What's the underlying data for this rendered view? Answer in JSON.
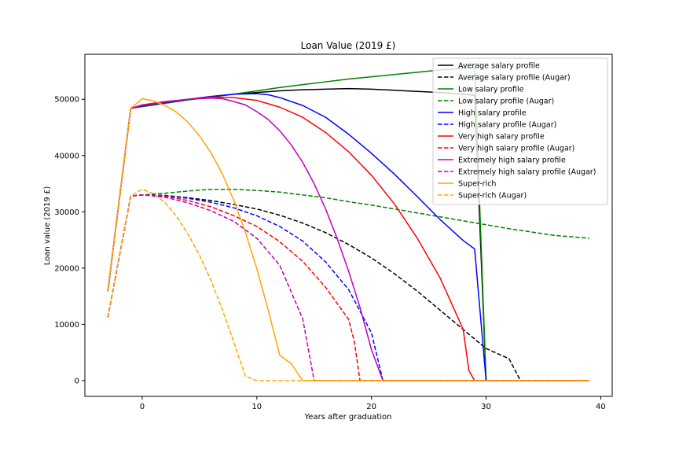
{
  "chart_data": {
    "type": "line",
    "title": "Loan Value (2019 £)",
    "xlabel": "Years after graduation",
    "ylabel": "Loan value (2019 £)",
    "xlim": [
      -5,
      41
    ],
    "ylim": [
      -2800,
      58000
    ],
    "xticks": [
      0,
      10,
      20,
      30,
      40
    ],
    "yticks": [
      0,
      10000,
      20000,
      30000,
      40000,
      50000
    ],
    "grid": false,
    "legend_position": "top-right",
    "series": [
      {
        "name": "Average salary profile",
        "color": "#000000",
        "dashed": false,
        "points": [
          [
            -3,
            15800
          ],
          [
            -1,
            48400
          ],
          [
            0,
            48700
          ],
          [
            2,
            49300
          ],
          [
            4,
            49900
          ],
          [
            6,
            50400
          ],
          [
            8,
            50900
          ],
          [
            10,
            51200
          ],
          [
            12,
            51500
          ],
          [
            14,
            51700
          ],
          [
            16,
            51800
          ],
          [
            18,
            51900
          ],
          [
            20,
            51800
          ],
          [
            22,
            51600
          ],
          [
            24,
            51400
          ],
          [
            26,
            51200
          ],
          [
            28,
            50900
          ],
          [
            29,
            50700
          ],
          [
            30,
            0
          ]
        ]
      },
      {
        "name": "Average salary profile (Augar)",
        "color": "#000000",
        "dashed": true,
        "points": [
          [
            -3,
            11200
          ],
          [
            -1,
            32800
          ],
          [
            0,
            33000
          ],
          [
            2,
            32900
          ],
          [
            4,
            32500
          ],
          [
            6,
            32000
          ],
          [
            8,
            31300
          ],
          [
            10,
            30500
          ],
          [
            12,
            29400
          ],
          [
            14,
            28000
          ],
          [
            16,
            26300
          ],
          [
            18,
            24200
          ],
          [
            20,
            21800
          ],
          [
            22,
            19000
          ],
          [
            24,
            15900
          ],
          [
            26,
            12500
          ],
          [
            28,
            9100
          ],
          [
            30,
            5700
          ],
          [
            32,
            3900
          ],
          [
            33,
            0
          ],
          [
            39,
            0
          ]
        ]
      },
      {
        "name": "Low salary profile",
        "color": "#008000",
        "dashed": false,
        "points": [
          [
            -3,
            15800
          ],
          [
            -1,
            48400
          ],
          [
            0,
            48700
          ],
          [
            2,
            49300
          ],
          [
            4,
            49900
          ],
          [
            6,
            50400
          ],
          [
            8,
            50900
          ],
          [
            10,
            51500
          ],
          [
            12,
            52100
          ],
          [
            14,
            52600
          ],
          [
            16,
            53100
          ],
          [
            18,
            53600
          ],
          [
            20,
            54000
          ],
          [
            22,
            54400
          ],
          [
            24,
            54800
          ],
          [
            26,
            55200
          ],
          [
            28,
            55500
          ],
          [
            29,
            55700
          ],
          [
            30,
            0
          ]
        ]
      },
      {
        "name": "Low salary profile (Augar)",
        "color": "#008000",
        "dashed": true,
        "points": [
          [
            -3,
            11200
          ],
          [
            -1,
            32800
          ],
          [
            0,
            33000
          ],
          [
            2,
            33300
          ],
          [
            4,
            33700
          ],
          [
            6,
            34000
          ],
          [
            8,
            34000
          ],
          [
            10,
            33800
          ],
          [
            12,
            33500
          ],
          [
            14,
            33000
          ],
          [
            16,
            32500
          ],
          [
            18,
            31800
          ],
          [
            20,
            31200
          ],
          [
            22,
            30500
          ],
          [
            24,
            29800
          ],
          [
            26,
            29100
          ],
          [
            28,
            28400
          ],
          [
            30,
            27700
          ],
          [
            32,
            27000
          ],
          [
            34,
            26400
          ],
          [
            36,
            25800
          ],
          [
            39,
            25300
          ]
        ]
      },
      {
        "name": "High salary profile",
        "color": "#0000ff",
        "dashed": false,
        "points": [
          [
            -3,
            15800
          ],
          [
            -1,
            48400
          ],
          [
            0,
            48800
          ],
          [
            2,
            49400
          ],
          [
            4,
            50000
          ],
          [
            6,
            50500
          ],
          [
            8,
            50900
          ],
          [
            10,
            51000
          ],
          [
            11,
            50800
          ],
          [
            12,
            50300
          ],
          [
            14,
            48900
          ],
          [
            16,
            46800
          ],
          [
            18,
            43800
          ],
          [
            20,
            40400
          ],
          [
            22,
            36700
          ],
          [
            24,
            32700
          ],
          [
            26,
            28600
          ],
          [
            28,
            24900
          ],
          [
            29,
            23400
          ],
          [
            30,
            0
          ]
        ]
      },
      {
        "name": "High salary profile (Augar)",
        "color": "#0000ff",
        "dashed": true,
        "points": [
          [
            -3,
            11200
          ],
          [
            -1,
            32800
          ],
          [
            0,
            33000
          ],
          [
            2,
            32900
          ],
          [
            4,
            32400
          ],
          [
            6,
            31700
          ],
          [
            8,
            30700
          ],
          [
            10,
            29300
          ],
          [
            12,
            27400
          ],
          [
            14,
            24800
          ],
          [
            16,
            21100
          ],
          [
            18,
            16200
          ],
          [
            20,
            8500
          ],
          [
            21,
            0
          ],
          [
            39,
            0
          ]
        ]
      },
      {
        "name": "Very high salary profile",
        "color": "#ff0000",
        "dashed": false,
        "points": [
          [
            -3,
            15800
          ],
          [
            -1,
            48400
          ],
          [
            0,
            48900
          ],
          [
            2,
            49500
          ],
          [
            4,
            50000
          ],
          [
            6,
            50400
          ],
          [
            8,
            50300
          ],
          [
            10,
            49800
          ],
          [
            12,
            48600
          ],
          [
            14,
            46800
          ],
          [
            16,
            44100
          ],
          [
            18,
            40700
          ],
          [
            20,
            36500
          ],
          [
            22,
            31400
          ],
          [
            24,
            25300
          ],
          [
            26,
            18200
          ],
          [
            28,
            9100
          ],
          [
            28.5,
            1800
          ],
          [
            29,
            0
          ],
          [
            39,
            0
          ]
        ]
      },
      {
        "name": "Very high salary profile (Augar)",
        "color": "#ff0000",
        "dashed": true,
        "points": [
          [
            -3,
            11200
          ],
          [
            -1,
            32800
          ],
          [
            0,
            33000
          ],
          [
            2,
            32800
          ],
          [
            4,
            32000
          ],
          [
            6,
            30900
          ],
          [
            8,
            29300
          ],
          [
            10,
            27400
          ],
          [
            12,
            24700
          ],
          [
            14,
            21200
          ],
          [
            16,
            16600
          ],
          [
            18,
            10900
          ],
          [
            18.5,
            7000
          ],
          [
            19,
            0
          ],
          [
            39,
            0
          ]
        ]
      },
      {
        "name": "Extremely high salary profile",
        "color": "#bf00bf",
        "dashed": false,
        "points": [
          [
            -3,
            15800
          ],
          [
            -1,
            48400
          ],
          [
            0,
            49000
          ],
          [
            2,
            49600
          ],
          [
            4,
            50000
          ],
          [
            6,
            50200
          ],
          [
            7,
            50100
          ],
          [
            8,
            49600
          ],
          [
            9,
            49000
          ],
          [
            10,
            47800
          ],
          [
            11,
            46400
          ],
          [
            12,
            44400
          ],
          [
            13,
            41900
          ],
          [
            14,
            38800
          ],
          [
            15,
            35000
          ],
          [
            16,
            30500
          ],
          [
            17,
            25300
          ],
          [
            18,
            19500
          ],
          [
            19,
            13000
          ],
          [
            20,
            5500
          ],
          [
            21,
            0
          ],
          [
            39,
            0
          ]
        ]
      },
      {
        "name": "Extremely high salary profile (Augar)",
        "color": "#bf00bf",
        "dashed": true,
        "points": [
          [
            -3,
            11200
          ],
          [
            -1,
            32800
          ],
          [
            0,
            33000
          ],
          [
            2,
            32600
          ],
          [
            4,
            31600
          ],
          [
            6,
            30200
          ],
          [
            8,
            28300
          ],
          [
            10,
            25300
          ],
          [
            12,
            20500
          ],
          [
            14,
            11000
          ],
          [
            15,
            0
          ],
          [
            39,
            0
          ]
        ]
      },
      {
        "name": "Super-rich",
        "color": "#ffa500",
        "dashed": false,
        "points": [
          [
            -3,
            15800
          ],
          [
            -1,
            48400
          ],
          [
            0,
            50100
          ],
          [
            1,
            49700
          ],
          [
            2,
            48900
          ],
          [
            3,
            47700
          ],
          [
            4,
            45900
          ],
          [
            5,
            43500
          ],
          [
            6,
            40500
          ],
          [
            7,
            36700
          ],
          [
            8,
            32000
          ],
          [
            9,
            26400
          ],
          [
            10,
            19900
          ],
          [
            11,
            12500
          ],
          [
            12,
            4500
          ],
          [
            13,
            3000
          ],
          [
            14,
            0
          ],
          [
            39,
            0
          ]
        ]
      },
      {
        "name": "Super-rich (Augar)",
        "color": "#ffa500",
        "dashed": true,
        "points": [
          [
            -3,
            11200
          ],
          [
            -1,
            32800
          ],
          [
            0,
            34000
          ],
          [
            1,
            33200
          ],
          [
            2,
            31600
          ],
          [
            3,
            29200
          ],
          [
            4,
            26000
          ],
          [
            5,
            22300
          ],
          [
            6,
            17800
          ],
          [
            7,
            12600
          ],
          [
            8,
            6800
          ],
          [
            9,
            800
          ],
          [
            10,
            0
          ],
          [
            39,
            0
          ]
        ]
      }
    ]
  }
}
